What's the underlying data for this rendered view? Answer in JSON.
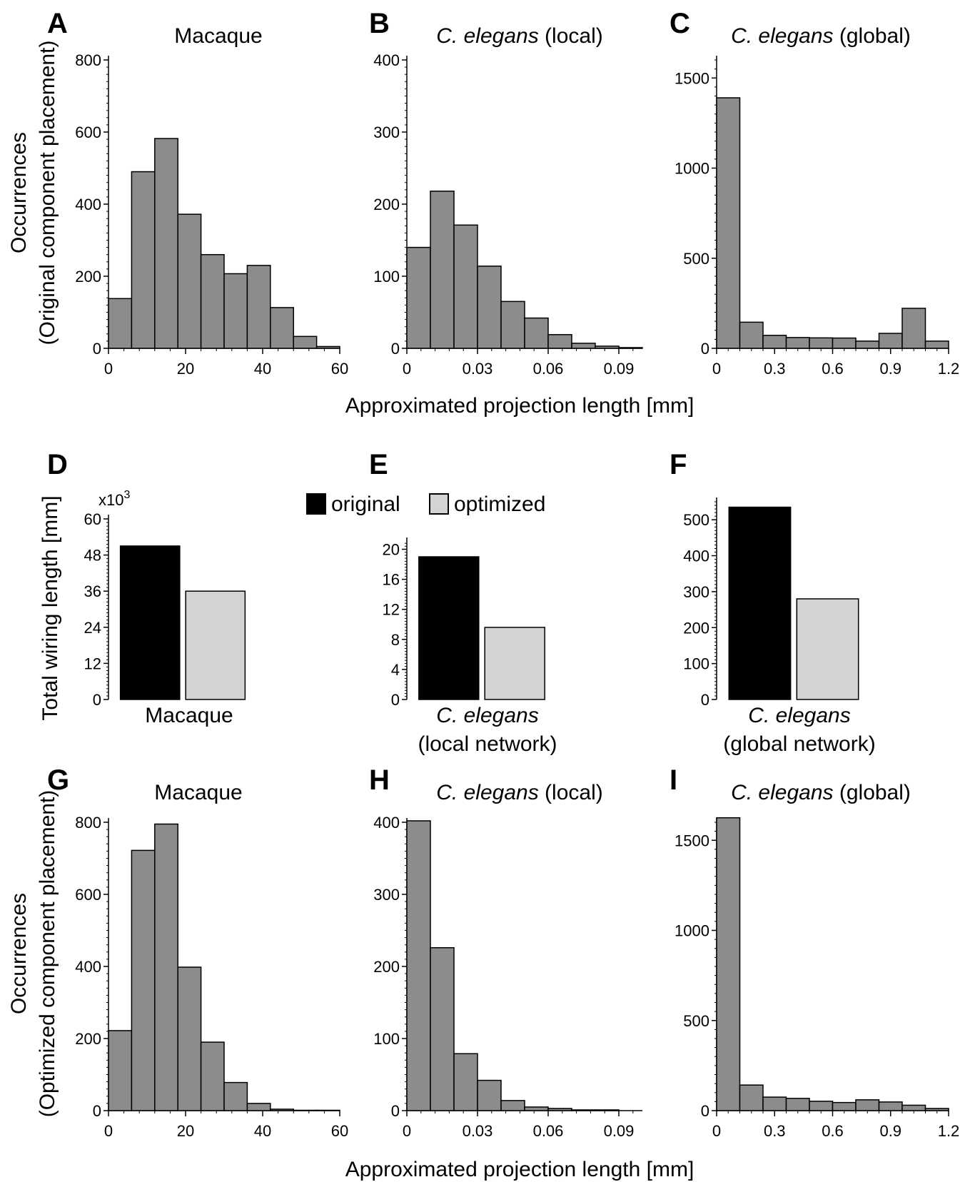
{
  "figure": {
    "xlabel_top": "Approximated projection length [mm]",
    "xlabel_bottom": "Approximated projection length [mm]",
    "ylabel_top_line1": "Occurrences",
    "ylabel_top_line2": "(Original component placement)",
    "ylabel_bottom_line1": "Occurrences",
    "ylabel_bottom_line2": "(Optimized component placement)",
    "ylabel_middle": "Total wiring length [mm]",
    "multiplier_base": "x10",
    "multiplier_exp": "3",
    "legend": [
      {
        "label": "original",
        "color": "#000000"
      },
      {
        "label": "optimized",
        "color": "#d3d3d3"
      }
    ]
  },
  "chart_data": [
    {
      "letter": "A",
      "type": "bar",
      "title_plain": "Macaque",
      "x": [
        0,
        6,
        12,
        18,
        24,
        30,
        36,
        42,
        48,
        54
      ],
      "values": [
        138,
        490,
        582,
        372,
        260,
        207,
        230,
        113,
        33,
        5
      ],
      "bin_width": 6,
      "xlim": [
        0,
        60
      ],
      "ylim": [
        0,
        800
      ],
      "xticks": [
        0,
        20,
        40,
        60
      ],
      "xtick_labels": [
        "0",
        "20",
        "40",
        "60"
      ],
      "yticks": [
        0,
        200,
        400,
        600,
        800
      ],
      "ytick_labels": [
        "0",
        "200",
        "400",
        "600",
        "800"
      ],
      "color": "#8c8c8c"
    },
    {
      "letter": "B",
      "type": "bar",
      "title_italic": "C. elegans",
      "title_suffix": " (local)",
      "x": [
        0,
        0.01,
        0.02,
        0.03,
        0.04,
        0.05,
        0.06,
        0.07,
        0.08,
        0.09
      ],
      "values": [
        140,
        218,
        171,
        114,
        65,
        42,
        19,
        7,
        3,
        1
      ],
      "bin_width": 0.01,
      "xlim": [
        0,
        0.1
      ],
      "ylim": [
        0,
        400
      ],
      "xticks": [
        0,
        0.03,
        0.06,
        0.09
      ],
      "xtick_labels": [
        "0",
        "0.03",
        "0.06",
        "0.09"
      ],
      "yticks": [
        0,
        100,
        200,
        300,
        400
      ],
      "ytick_labels": [
        "0",
        "100",
        "200",
        "300",
        "400"
      ],
      "color": "#8c8c8c"
    },
    {
      "letter": "C",
      "type": "bar",
      "title_italic": "C. elegans",
      "title_suffix": " (global)",
      "x": [
        0,
        0.12,
        0.24,
        0.36,
        0.48,
        0.6,
        0.72,
        0.84,
        0.96,
        1.08
      ],
      "values": [
        1390,
        145,
        72,
        60,
        58,
        57,
        40,
        83,
        222,
        40
      ],
      "bin_width": 0.12,
      "xlim": [
        0,
        1.2
      ],
      "ylim": [
        0,
        1600
      ],
      "xticks": [
        0,
        0.3,
        0.6,
        0.9,
        1.2
      ],
      "xtick_labels": [
        "0",
        "0.3",
        "0.6",
        "0.9",
        "1.2"
      ],
      "yticks": [
        0,
        500,
        1000,
        1500
      ],
      "ytick_labels": [
        "0",
        "500",
        "1000",
        "1500"
      ],
      "color": "#8c8c8c"
    },
    {
      "letter": "D",
      "type": "bar",
      "xlabel_lines": [
        "Macaque"
      ],
      "categories": [
        "original",
        "optimized"
      ],
      "values": [
        51,
        36
      ],
      "ylim": [
        0,
        60
      ],
      "multiplier": 1000,
      "yticks": [
        0,
        12,
        24,
        36,
        48,
        60
      ],
      "ytick_labels": [
        "0",
        "12",
        "24",
        "36",
        "48",
        "60"
      ],
      "colors": [
        "#000000",
        "#d3d3d3"
      ]
    },
    {
      "letter": "E",
      "type": "bar",
      "xlabel_italic": "C. elegans",
      "xlabel_line2": "(local network)",
      "categories": [
        "original",
        "optimized"
      ],
      "values": [
        19,
        9.6
      ],
      "ylim": [
        0,
        21
      ],
      "yticks": [
        0,
        4,
        8,
        12,
        16,
        20
      ],
      "ytick_labels": [
        "0",
        "4",
        "8",
        "12",
        "16",
        "20"
      ],
      "colors": [
        "#000000",
        "#d3d3d3"
      ]
    },
    {
      "letter": "F",
      "type": "bar",
      "xlabel_italic": "C. elegans",
      "xlabel_line2": "(global network)",
      "categories": [
        "original",
        "optimized"
      ],
      "values": [
        535,
        280
      ],
      "ylim": [
        0,
        550
      ],
      "yticks": [
        0,
        100,
        200,
        300,
        400,
        500
      ],
      "ytick_labels": [
        "0",
        "100",
        "200",
        "300",
        "400",
        "500"
      ],
      "colors": [
        "#000000",
        "#d3d3d3"
      ]
    },
    {
      "letter": "G",
      "type": "bar",
      "title_plain": "Macaque",
      "x": [
        0,
        6,
        12,
        18,
        24,
        30,
        36,
        42,
        48,
        54
      ],
      "values": [
        222,
        722,
        795,
        398,
        190,
        78,
        20,
        4,
        1,
        1
      ],
      "bin_width": 6,
      "xlim": [
        0,
        60
      ],
      "ylim": [
        0,
        800
      ],
      "xticks": [
        0,
        20,
        40,
        60
      ],
      "xtick_labels": [
        "0",
        "20",
        "40",
        "60"
      ],
      "yticks": [
        0,
        200,
        400,
        600,
        800
      ],
      "ytick_labels": [
        "0",
        "200",
        "400",
        "600",
        "800"
      ],
      "color": "#8c8c8c"
    },
    {
      "letter": "H",
      "type": "bar",
      "title_italic": "C. elegans",
      "title_suffix": " (local)",
      "x": [
        0,
        0.01,
        0.02,
        0.03,
        0.04,
        0.05,
        0.06,
        0.07,
        0.08,
        0.09
      ],
      "values": [
        402,
        226,
        79,
        42,
        14,
        5,
        3,
        1,
        1,
        0
      ],
      "bin_width": 0.01,
      "xlim": [
        0,
        0.1
      ],
      "ylim": [
        0,
        400
      ],
      "xticks": [
        0,
        0.03,
        0.06,
        0.09
      ],
      "xtick_labels": [
        "0",
        "0.03",
        "0.06",
        "0.09"
      ],
      "yticks": [
        0,
        100,
        200,
        300,
        400
      ],
      "ytick_labels": [
        "0",
        "100",
        "200",
        "300",
        "400"
      ],
      "color": "#8c8c8c"
    },
    {
      "letter": "I",
      "type": "bar",
      "title_italic": "C. elegans",
      "title_suffix": " (global)",
      "x": [
        0,
        0.12,
        0.24,
        0.36,
        0.48,
        0.6,
        0.72,
        0.84,
        0.96,
        1.08
      ],
      "values": [
        1625,
        142,
        75,
        68,
        52,
        45,
        60,
        48,
        30,
        12
      ],
      "bin_width": 0.12,
      "xlim": [
        0,
        1.2
      ],
      "ylim": [
        0,
        1600
      ],
      "xticks": [
        0,
        0.3,
        0.6,
        0.9,
        1.2
      ],
      "xtick_labels": [
        "0",
        "0.3",
        "0.6",
        "0.9",
        "1.2"
      ],
      "yticks": [
        0,
        500,
        1000,
        1500
      ],
      "ytick_labels": [
        "0",
        "500",
        "1000",
        "1500"
      ],
      "color": "#8c8c8c"
    }
  ]
}
